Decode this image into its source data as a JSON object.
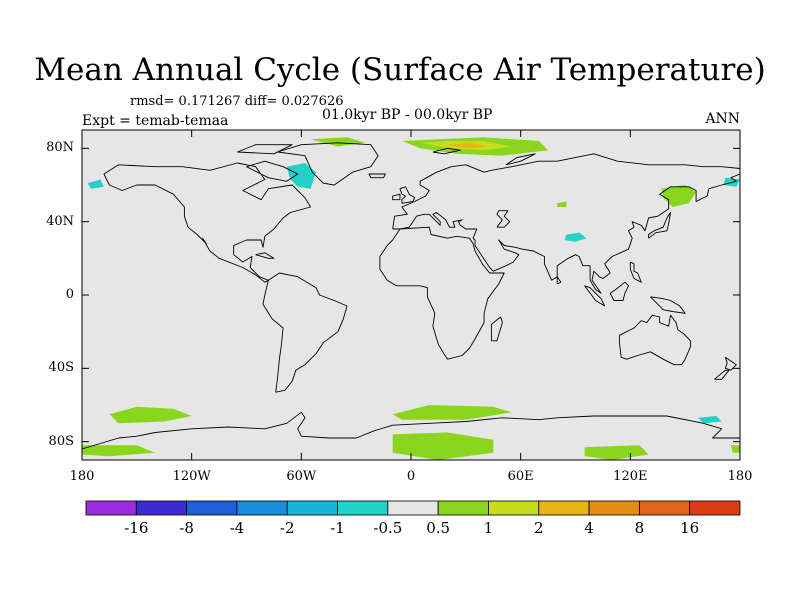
{
  "chart_data": {
    "type": "map",
    "title": "Mean Annual Cycle (Surface Air Temperature)",
    "stats": "rmsd= 0.171267 diff= 0.027626",
    "period": "01.0kyr BP - 00.0kyr BP",
    "experiment": "Expt = temab-temaa",
    "season": "ANN",
    "lon_range": [
      -180,
      180
    ],
    "lat_range": [
      -90,
      90
    ],
    "x_ticks": [
      {
        "value": -180,
        "label": "180"
      },
      {
        "value": -120,
        "label": "120W"
      },
      {
        "value": -60,
        "label": "60W"
      },
      {
        "value": 0,
        "label": "0"
      },
      {
        "value": 60,
        "label": "60E"
      },
      {
        "value": 120,
        "label": "120E"
      },
      {
        "value": 180,
        "label": "180"
      }
    ],
    "y_ticks": [
      {
        "value": 80,
        "label": "80N"
      },
      {
        "value": 40,
        "label": "40N"
      },
      {
        "value": 0,
        "label": "0"
      },
      {
        "value": -40,
        "label": "40S"
      },
      {
        "value": -80,
        "label": "80S"
      }
    ],
    "colorbar": {
      "colors": [
        "#9b2be0",
        "#3c2ad6",
        "#1f5fd9",
        "#1a8ce0",
        "#14b4d8",
        "#20d2c8",
        "#e6e6e6",
        "#8ad61e",
        "#c8dc1e",
        "#e6b414",
        "#e68c14",
        "#e0641a",
        "#dc3c14"
      ],
      "labels": [
        "-16",
        "-8",
        "-4",
        "-2",
        "-1",
        "-0.5",
        "0.5",
        "1",
        "2",
        "4",
        "8",
        "16"
      ]
    },
    "anomaly_regions": [
      {
        "name": "greenland-north",
        "category": "0.5 to 1",
        "color": "#8ad61e",
        "points": [
          [
            -55,
            85
          ],
          [
            -35,
            86
          ],
          [
            -25,
            83
          ],
          [
            -40,
            81
          ]
        ]
      },
      {
        "name": "svalbard-kara-outer",
        "category": "0.5 to 1",
        "color": "#8ad61e",
        "points": [
          [
            -5,
            84
          ],
          [
            15,
            85
          ],
          [
            40,
            86
          ],
          [
            70,
            84
          ],
          [
            75,
            79
          ],
          [
            50,
            76
          ],
          [
            25,
            77
          ],
          [
            5,
            80
          ]
        ]
      },
      {
        "name": "svalbard-kara-inner",
        "category": "1 to 2",
        "color": "#c8dc1e",
        "points": [
          [
            5,
            83
          ],
          [
            20,
            84
          ],
          [
            40,
            84
          ],
          [
            55,
            81
          ],
          [
            40,
            79
          ],
          [
            20,
            80
          ]
        ]
      },
      {
        "name": "barents-core",
        "category": "2 to 4",
        "color": "#e6b414",
        "points": [
          [
            20,
            82
          ],
          [
            32,
            83
          ],
          [
            42,
            81
          ],
          [
            30,
            80
          ]
        ]
      },
      {
        "name": "labrador-sea",
        "category": "-1 to -0.5",
        "color": "#20d2c8",
        "points": [
          [
            -68,
            70
          ],
          [
            -58,
            72
          ],
          [
            -52,
            67
          ],
          [
            -55,
            58
          ],
          [
            -62,
            59
          ],
          [
            -66,
            63
          ]
        ]
      },
      {
        "name": "bering-west",
        "category": "-1 to -0.5",
        "color": "#20d2c8",
        "points": [
          [
            -177,
            61
          ],
          [
            -170,
            63
          ],
          [
            -168,
            59
          ],
          [
            -175,
            58
          ]
        ]
      },
      {
        "name": "bering-east",
        "category": "-1 to -0.5",
        "color": "#20d2c8",
        "points": [
          [
            172,
            64
          ],
          [
            180,
            63
          ],
          [
            178,
            59
          ],
          [
            171,
            60
          ]
        ]
      },
      {
        "name": "tibet",
        "category": "-1 to -0.5",
        "color": "#20d2c8",
        "points": [
          [
            85,
            33
          ],
          [
            92,
            34
          ],
          [
            96,
            31
          ],
          [
            90,
            29
          ],
          [
            84,
            30
          ]
        ]
      },
      {
        "name": "kamchatka",
        "category": "0.5 to 1",
        "color": "#8ad61e",
        "points": [
          [
            137,
            58
          ],
          [
            150,
            60
          ],
          [
            156,
            56
          ],
          [
            152,
            50
          ],
          [
            143,
            48
          ],
          [
            138,
            53
          ]
        ]
      },
      {
        "name": "siberia-small",
        "category": "0.5 to 1",
        "color": "#8ad61e",
        "points": [
          [
            80,
            50
          ],
          [
            85,
            51
          ],
          [
            85,
            48
          ],
          [
            80,
            48
          ]
        ]
      },
      {
        "name": "southern-ocean-pacific",
        "category": "0.5 to 1",
        "color": "#8ad61e",
        "points": [
          [
            -165,
            -65
          ],
          [
            -150,
            -61
          ],
          [
            -130,
            -62
          ],
          [
            -120,
            -66
          ],
          [
            -135,
            -69
          ],
          [
            -160,
            -70
          ]
        ]
      },
      {
        "name": "southern-ocean-atlantic",
        "category": "0.5 to 1",
        "color": "#8ad61e",
        "points": [
          [
            -10,
            -65
          ],
          [
            10,
            -60
          ],
          [
            45,
            -61
          ],
          [
            55,
            -64
          ],
          [
            30,
            -68
          ],
          [
            -5,
            -68
          ]
        ]
      },
      {
        "name": "antarctic-pacific",
        "category": "0.5 to 1",
        "color": "#8ad61e",
        "points": [
          [
            -180,
            -82
          ],
          [
            -150,
            -82
          ],
          [
            -140,
            -86
          ],
          [
            -165,
            -88
          ],
          [
            -180,
            -87
          ]
        ]
      },
      {
        "name": "antarctic-east",
        "category": "0.5 to 1",
        "color": "#8ad61e",
        "points": [
          [
            -10,
            -76
          ],
          [
            20,
            -75
          ],
          [
            45,
            -79
          ],
          [
            45,
            -86
          ],
          [
            15,
            -90
          ],
          [
            -10,
            -86
          ]
        ]
      },
      {
        "name": "antarctic-120e",
        "category": "0.5 to 1",
        "color": "#8ad61e",
        "points": [
          [
            95,
            -83
          ],
          [
            125,
            -82
          ],
          [
            130,
            -87
          ],
          [
            110,
            -90
          ],
          [
            95,
            -88
          ]
        ]
      },
      {
        "name": "antarctic-180",
        "category": "0.5 to 1",
        "color": "#8ad61e",
        "points": [
          [
            175,
            -82
          ],
          [
            180,
            -82
          ],
          [
            180,
            -86
          ],
          [
            176,
            -86
          ]
        ]
      },
      {
        "name": "ross-sea",
        "category": "-1 to -0.5",
        "color": "#20d2c8",
        "points": [
          [
            157,
            -67
          ],
          [
            167,
            -66
          ],
          [
            170,
            -69
          ],
          [
            160,
            -70
          ]
        ]
      }
    ]
  }
}
